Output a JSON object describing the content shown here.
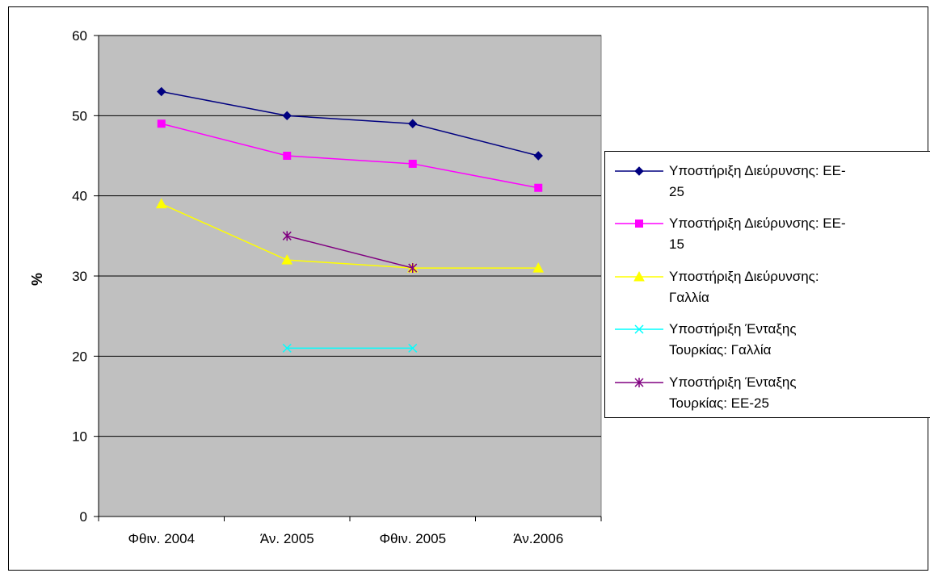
{
  "chart_data": {
    "type": "line",
    "title": "",
    "xlabel": "",
    "ylabel": "%",
    "ylim": [
      0,
      60
    ],
    "yticks": [
      0,
      10,
      20,
      30,
      40,
      50,
      60
    ],
    "categories": [
      "Φθιν. 2004",
      "Άν. 2005",
      "Φθιν. 2005",
      "Άν.2006"
    ],
    "grid": true,
    "plot_background": "#c0c0c0",
    "legend_position": "right",
    "series": [
      {
        "name": "Υποστήριξη Διεύρυνσης: ΕΕ-25",
        "name_lines": [
          "Υποστήριξη Διεύρυνσης: ΕΕ-",
          "25"
        ],
        "color": "#000080",
        "marker": "diamond",
        "values": [
          53,
          50,
          49,
          45
        ]
      },
      {
        "name": "Υποστήριξη Διεύρυνσης: ΕΕ-15",
        "name_lines": [
          "Υποστήριξη Διεύρυνσης: ΕΕ-",
          "15"
        ],
        "color": "#ff00ff",
        "marker": "square",
        "values": [
          49,
          45,
          44,
          41
        ]
      },
      {
        "name": "Υποστήριξη Διεύρυνσης: Γαλλία",
        "name_lines": [
          "Υποστήριξη Διεύρυνσης:",
          "Γαλλία"
        ],
        "color": "#ffff00",
        "marker": "triangle",
        "values": [
          39,
          32,
          31,
          31
        ]
      },
      {
        "name": "Υποστήριξη Ένταξης Τουρκίας: Γαλλία",
        "name_lines": [
          "Υποστήριξη Ένταξης",
          "Τουρκίας: Γαλλία"
        ],
        "color": "#00ffff",
        "marker": "x",
        "values": [
          null,
          21,
          21,
          null
        ]
      },
      {
        "name": "Υποστήριξη Ένταξης Τουρκίας: ΕΕ-25",
        "name_lines": [
          "Υποστήριξη Ένταξης",
          "Τουρκίας: ΕΕ-25"
        ],
        "color": "#800080",
        "marker": "star",
        "values": [
          null,
          35,
          31,
          null
        ]
      }
    ]
  }
}
